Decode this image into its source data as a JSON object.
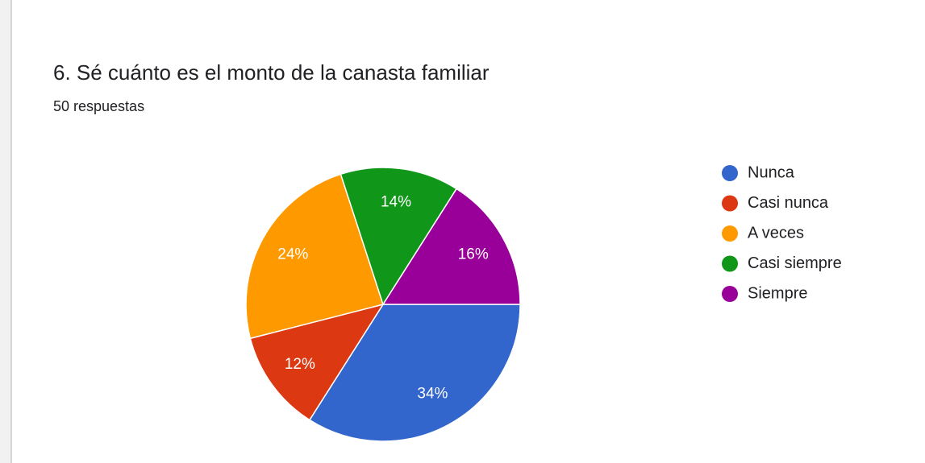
{
  "chart_data": {
    "type": "pie",
    "title": "6. Sé cuánto es el monto de la canasta familiar",
    "subtitle": "50 respuestas",
    "categories": [
      "Nunca",
      "Casi nunca",
      "A veces",
      "Casi siempre",
      "Siempre"
    ],
    "values": [
      34,
      12,
      24,
      14,
      16
    ],
    "value_labels": [
      "34%",
      "12%",
      "24%",
      "14%",
      "16%"
    ],
    "colors": [
      "#3366cc",
      "#dc3912",
      "#ff9900",
      "#109618",
      "#990099"
    ],
    "legend": "right"
  }
}
